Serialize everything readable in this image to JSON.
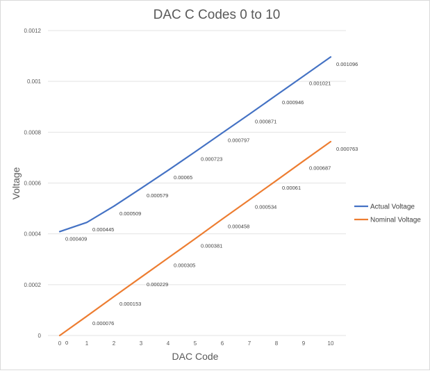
{
  "chart_data": {
    "type": "line",
    "title": "DAC C Codes 0 to 10",
    "xlabel": "DAC Code",
    "ylabel": "Voltage",
    "x": [
      0,
      1,
      2,
      3,
      4,
      5,
      6,
      7,
      8,
      9,
      10
    ],
    "xticks": [
      "0",
      "1",
      "2",
      "3",
      "4",
      "5",
      "6",
      "7",
      "8",
      "9",
      "10"
    ],
    "ylim": [
      0,
      0.0012
    ],
    "yticks": [
      "0",
      "0.0002",
      "0.0004",
      "0.0006",
      "0.0008",
      "0.001",
      "0.0012"
    ],
    "grid": true,
    "legend_position": "right",
    "series": [
      {
        "name": "Actual Voltage",
        "color": "#4472c4",
        "values": [
          0.000409,
          0.000445,
          0.000509,
          0.000579,
          0.00065,
          0.000723,
          0.000797,
          0.000871,
          0.000946,
          0.001021,
          0.001096
        ],
        "labels": [
          "0.000409",
          "0.000445",
          "0.000509",
          "0.000579",
          "0.00065",
          "0.000723",
          "0.000797",
          "0.000871",
          "0.000946",
          "0.001021",
          "0.001096"
        ]
      },
      {
        "name": "Nominal Voltage",
        "color": "#ed7d31",
        "values": [
          0,
          7.6e-05,
          0.000153,
          0.000229,
          0.000305,
          0.000381,
          0.000458,
          0.000534,
          0.00061,
          0.000687,
          0.000763
        ],
        "labels": [
          "0",
          "0.000076",
          "0.000153",
          "0.000229",
          "0.000305",
          "0.000381",
          "0.000458",
          "0.000534",
          "0.00061",
          "0.000687",
          "0.000763"
        ]
      }
    ]
  }
}
